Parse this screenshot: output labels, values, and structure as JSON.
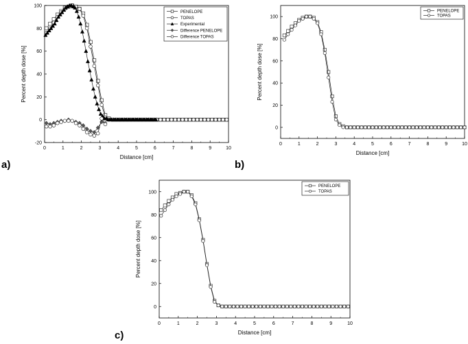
{
  "panel_labels": [
    "a)",
    "b)",
    "c)"
  ],
  "chart_data": [
    {
      "type": "line",
      "xlabel": "Distance [cm]",
      "ylabel": "Percent depth dose [%]",
      "xlim": [
        0,
        10
      ],
      "ylim": [
        -20,
        100
      ],
      "xticks": [
        0,
        1,
        2,
        3,
        4,
        5,
        6,
        7,
        8,
        9,
        10
      ],
      "yticks": [
        -20,
        0,
        20,
        40,
        60,
        80,
        100
      ],
      "grid": false,
      "legend_position": "top-right",
      "series": [
        {
          "name": "PENELOPE",
          "marker": "square",
          "x": [
            0.1,
            0.3,
            0.5,
            0.7,
            0.9,
            1.1,
            1.3,
            1.5,
            1.7,
            1.9,
            2.1,
            2.3,
            2.5,
            2.7,
            2.9,
            3.1,
            3.3,
            3.5,
            3.7,
            3.9,
            4.1,
            4.3,
            4.5,
            4.7,
            4.9,
            5.1,
            5.3,
            5.5,
            5.7,
            5.9,
            6.1,
            6.3,
            6.5,
            6.7,
            6.9,
            7.1,
            7.3,
            7.5,
            7.7,
            7.9,
            8.1,
            8.3,
            8.5,
            8.7,
            8.9,
            9.1,
            9.3,
            9.5,
            9.7,
            9.9
          ],
          "y": [
            80,
            84,
            88,
            92,
            95,
            98,
            99,
            100,
            99,
            97,
            93,
            83,
            68,
            52,
            34,
            17,
            4,
            1,
            0,
            0,
            0,
            0,
            0,
            0,
            0,
            0,
            0,
            0,
            0,
            0,
            0,
            0,
            0,
            0,
            0,
            0,
            0,
            0,
            0,
            0,
            0,
            0,
            0,
            0,
            0,
            0,
            0,
            0,
            0,
            0
          ]
        },
        {
          "name": "TOPAS",
          "marker": "circle",
          "x": [
            0.1,
            0.3,
            0.5,
            0.7,
            0.9,
            1.1,
            1.3,
            1.5,
            1.7,
            1.9,
            2.1,
            2.3,
            2.5,
            2.7,
            2.9,
            3.1,
            3.3,
            3.5,
            3.7,
            3.9,
            4.1,
            4.3,
            4.5,
            4.7,
            4.9,
            5.1,
            5.3,
            5.5,
            5.7,
            5.9,
            6.1,
            6.3,
            6.5,
            6.7,
            6.9,
            7.1,
            7.3,
            7.5,
            7.7,
            7.9,
            8.1,
            8.3,
            8.5,
            8.7,
            8.9,
            9.1,
            9.3,
            9.5,
            9.7,
            9.9
          ],
          "y": [
            76,
            80,
            85,
            90,
            94,
            97,
            99,
            100,
            99,
            97,
            91,
            80,
            64,
            47,
            30,
            13,
            2,
            0,
            0,
            0,
            0,
            0,
            0,
            0,
            0,
            0,
            0,
            0,
            0,
            0,
            0,
            0,
            0,
            0,
            0,
            0,
            0,
            0,
            0,
            0,
            0,
            0,
            0,
            0,
            0,
            0,
            0,
            0,
            0,
            0
          ]
        },
        {
          "name": "Experimental",
          "marker": "triangle-filled",
          "x": [
            0.05,
            0.15,
            0.25,
            0.35,
            0.45,
            0.55,
            0.65,
            0.75,
            0.85,
            0.95,
            1.05,
            1.15,
            1.25,
            1.35,
            1.45,
            1.55,
            1.65,
            1.75,
            1.85,
            1.95,
            2.05,
            2.15,
            2.25,
            2.35,
            2.45,
            2.55,
            2.65,
            2.75,
            2.85,
            2.95,
            3.05,
            3.15,
            3.25,
            3.35,
            3.45,
            3.55,
            3.65,
            3.75,
            3.85,
            3.95,
            4.05,
            4.15,
            4.25,
            4.35,
            4.45,
            4.55,
            4.65,
            4.75,
            4.85,
            4.95,
            5.05,
            5.15,
            5.25,
            5.35,
            5.45,
            5.55,
            5.65,
            5.75,
            5.85,
            5.95,
            6.05
          ],
          "y": [
            74,
            76,
            78,
            80,
            82,
            84,
            87,
            90,
            92,
            94,
            96,
            98,
            99,
            100,
            100,
            99,
            98,
            95,
            90,
            84,
            77,
            69,
            60,
            51,
            43,
            35,
            27,
            20,
            14,
            9,
            5,
            3,
            1,
            1,
            0,
            0,
            0,
            0,
            0,
            0,
            0,
            0,
            0,
            0,
            0,
            0,
            0,
            0,
            0,
            0,
            0,
            0,
            0,
            0,
            0,
            0,
            0,
            0,
            0,
            0,
            0
          ]
        },
        {
          "name": "Difference PENELOPE",
          "marker": "diamond",
          "x": [
            0.1,
            0.3,
            0.5,
            0.7,
            0.9,
            1.1,
            1.3,
            1.5,
            1.7,
            1.9,
            2.1,
            2.3,
            2.5,
            2.7,
            2.9,
            3.1,
            3.3
          ],
          "y": [
            -3,
            -4,
            -3,
            -2,
            -1,
            -1,
            0,
            -1,
            -2,
            -3,
            -5,
            -8,
            -10,
            -11,
            -7,
            -2,
            -3
          ]
        },
        {
          "name": "Difference TOPAS",
          "marker": "circle",
          "x": [
            0.1,
            0.3,
            0.5,
            0.7,
            0.9,
            1.1,
            1.3,
            1.5,
            1.7,
            1.9,
            2.1,
            2.3,
            2.5,
            2.7,
            2.9,
            3.1,
            3.3
          ],
          "y": [
            -6,
            -6,
            -5,
            -3,
            -2,
            -1,
            -1,
            -1,
            -3,
            -5,
            -8,
            -11,
            -13,
            -14,
            -12,
            1,
            -4
          ]
        }
      ]
    },
    {
      "type": "line",
      "xlabel": "Distance [cm]",
      "ylabel": "Percent depth dose [%]",
      "xlim": [
        0,
        10
      ],
      "ylim": [
        -10,
        110
      ],
      "xticks": [
        0,
        1,
        2,
        3,
        4,
        5,
        6,
        7,
        8,
        9,
        10
      ],
      "yticks": [
        0,
        20,
        40,
        60,
        80,
        100
      ],
      "grid": false,
      "legend_position": "top-right",
      "series": [
        {
          "name": "PENELOPE",
          "marker": "square",
          "x": [
            0.2,
            0.4,
            0.6,
            0.8,
            1.0,
            1.2,
            1.4,
            1.6,
            1.8,
            2.0,
            2.2,
            2.4,
            2.6,
            2.8,
            3.0,
            3.2,
            3.4,
            3.6,
            3.8,
            4.0,
            4.2,
            4.4,
            4.6,
            4.8,
            5.0,
            5.2,
            5.4,
            5.6,
            5.8,
            6.0,
            6.2,
            6.4,
            6.6,
            6.8,
            7.0,
            7.2,
            7.4,
            7.6,
            7.8,
            8.0,
            8.2,
            8.4,
            8.6,
            8.8,
            9.0,
            9.2,
            9.4,
            9.6,
            9.8,
            10.0
          ],
          "y": [
            83,
            87,
            91,
            94,
            97,
            99,
            100,
            100,
            99,
            95,
            86,
            70,
            50,
            28,
            10,
            3,
            1,
            0,
            0,
            0,
            0,
            0,
            0,
            0,
            0,
            0,
            0,
            0,
            0,
            0,
            0,
            0,
            0,
            0,
            0,
            0,
            0,
            0,
            0,
            0,
            0,
            0,
            0,
            0,
            0,
            0,
            0,
            0,
            0,
            0
          ]
        },
        {
          "name": "TOPAS",
          "marker": "circle",
          "x": [
            0.2,
            0.4,
            0.6,
            0.8,
            1.0,
            1.2,
            1.4,
            1.6,
            1.8,
            2.0,
            2.2,
            2.4,
            2.6,
            2.8,
            3.0,
            3.2,
            3.4,
            3.6,
            3.8,
            4.0,
            4.2,
            4.4,
            4.6,
            4.8,
            5.0,
            5.2,
            5.4,
            5.6,
            5.8,
            6.0,
            6.2,
            6.4,
            6.6,
            6.8,
            7.0,
            7.2,
            7.4,
            7.6,
            7.8,
            8.0,
            8.2,
            8.4,
            8.6,
            8.8,
            9.0,
            9.2,
            9.4,
            9.6,
            9.8,
            10.0
          ],
          "y": [
            79,
            84,
            88,
            92,
            96,
            98,
            100,
            100,
            98,
            94,
            84,
            67,
            45,
            23,
            7,
            2,
            0,
            0,
            0,
            0,
            0,
            0,
            0,
            0,
            0,
            0,
            0,
            0,
            0,
            0,
            0,
            0,
            0,
            0,
            0,
            0,
            0,
            0,
            0,
            0,
            0,
            0,
            0,
            0,
            0,
            0,
            0,
            0,
            0,
            0
          ]
        }
      ]
    },
    {
      "type": "line",
      "xlabel": "Distance [cm]",
      "ylabel": "Percent depth dose [%]",
      "xlim": [
        0,
        10
      ],
      "ylim": [
        -10,
        110
      ],
      "xticks": [
        0,
        1,
        2,
        3,
        4,
        5,
        6,
        7,
        8,
        9,
        10
      ],
      "yticks": [
        0,
        20,
        40,
        60,
        80,
        100
      ],
      "grid": false,
      "legend_position": "top-right",
      "series": [
        {
          "name": "PENELOPE",
          "marker": "square",
          "x": [
            0.1,
            0.3,
            0.5,
            0.7,
            0.9,
            1.1,
            1.3,
            1.5,
            1.7,
            1.9,
            2.1,
            2.3,
            2.5,
            2.7,
            2.9,
            3.1,
            3.3,
            3.5,
            3.7,
            3.9,
            4.1,
            4.3,
            4.5,
            4.7,
            4.9,
            5.1,
            5.3,
            5.5,
            5.7,
            5.9,
            6.1,
            6.3,
            6.5,
            6.7,
            6.9,
            7.1,
            7.3,
            7.5,
            7.7,
            7.9,
            8.1,
            8.3,
            8.5,
            8.7,
            8.9,
            9.1,
            9.3,
            9.5,
            9.7,
            9.9
          ],
          "y": [
            84,
            88,
            92,
            95,
            98,
            99,
            100,
            100,
            97,
            90,
            76,
            58,
            37,
            18,
            5,
            1,
            0,
            0,
            0,
            0,
            0,
            0,
            0,
            0,
            0,
            0,
            0,
            0,
            0,
            0,
            0,
            0,
            0,
            0,
            0,
            0,
            0,
            0,
            0,
            0,
            0,
            0,
            0,
            0,
            0,
            0,
            0,
            0,
            0,
            0
          ]
        },
        {
          "name": "TOPAS",
          "marker": "circle",
          "x": [
            0.1,
            0.3,
            0.5,
            0.7,
            0.9,
            1.1,
            1.3,
            1.5,
            1.7,
            1.9,
            2.1,
            2.3,
            2.5,
            2.7,
            2.9,
            3.1,
            3.3,
            3.5,
            3.7,
            3.9,
            4.1,
            4.3,
            4.5,
            4.7,
            4.9,
            5.1,
            5.3,
            5.5,
            5.7,
            5.9,
            6.1,
            6.3,
            6.5,
            6.7,
            6.9,
            7.1,
            7.3,
            7.5,
            7.7,
            7.9,
            8.1,
            8.3,
            8.5,
            8.7,
            8.9,
            9.1,
            9.3,
            9.5,
            9.7,
            9.9
          ],
          "y": [
            79,
            84,
            89,
            93,
            96,
            98,
            100,
            100,
            96,
            89,
            75,
            57,
            36,
            17,
            4,
            1,
            0,
            0,
            0,
            0,
            0,
            0,
            0,
            0,
            0,
            0,
            0,
            0,
            0,
            0,
            0,
            0,
            0,
            0,
            0,
            0,
            0,
            0,
            0,
            0,
            0,
            0,
            0,
            0,
            0,
            0,
            0,
            0,
            0,
            0
          ]
        }
      ]
    }
  ]
}
